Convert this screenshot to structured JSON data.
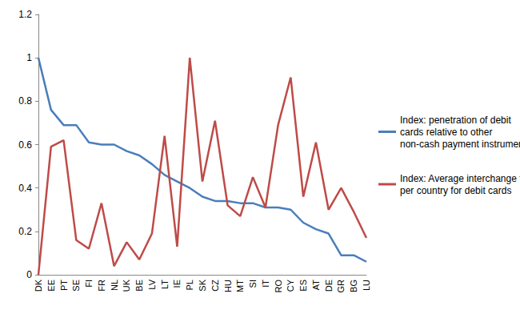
{
  "chart_data": {
    "type": "line",
    "categories": [
      "DK",
      "EE",
      "PT",
      "SE",
      "FI",
      "FR",
      "NL",
      "UK",
      "BE",
      "LV",
      "LT",
      "IE",
      "PL",
      "SK",
      "CZ",
      "HU",
      "MT",
      "SI",
      "IT",
      "RO",
      "CY",
      "ES",
      "AT",
      "DE",
      "GR",
      "BG",
      "LU"
    ],
    "series": [
      {
        "name": "Index: penetration of debit cards relative to other non-cash payment instruments",
        "color": "#4a7ebb",
        "values": [
          1.0,
          0.76,
          0.69,
          0.69,
          0.61,
          0.6,
          0.6,
          0.57,
          0.55,
          0.51,
          0.46,
          0.43,
          0.4,
          0.36,
          0.34,
          0.34,
          0.33,
          0.33,
          0.31,
          0.31,
          0.3,
          0.24,
          0.21,
          0.19,
          0.09,
          0.09,
          0.06
        ]
      },
      {
        "name": "Index: Average interchange fee per country for debit cards",
        "color": "#be4b48",
        "values": [
          0.0,
          0.59,
          0.62,
          0.16,
          0.12,
          0.33,
          0.04,
          0.15,
          0.07,
          0.19,
          0.64,
          0.13,
          1.0,
          0.43,
          0.71,
          0.32,
          0.27,
          0.45,
          0.31,
          0.69,
          0.91,
          0.36,
          0.61,
          0.3,
          0.4,
          0.29,
          0.17
        ]
      }
    ],
    "ylim": [
      0,
      1.2
    ],
    "yticks": [
      0,
      0.2,
      0.4,
      0.6,
      0.8,
      1,
      1.2
    ],
    "grid": false,
    "legend": "right"
  }
}
